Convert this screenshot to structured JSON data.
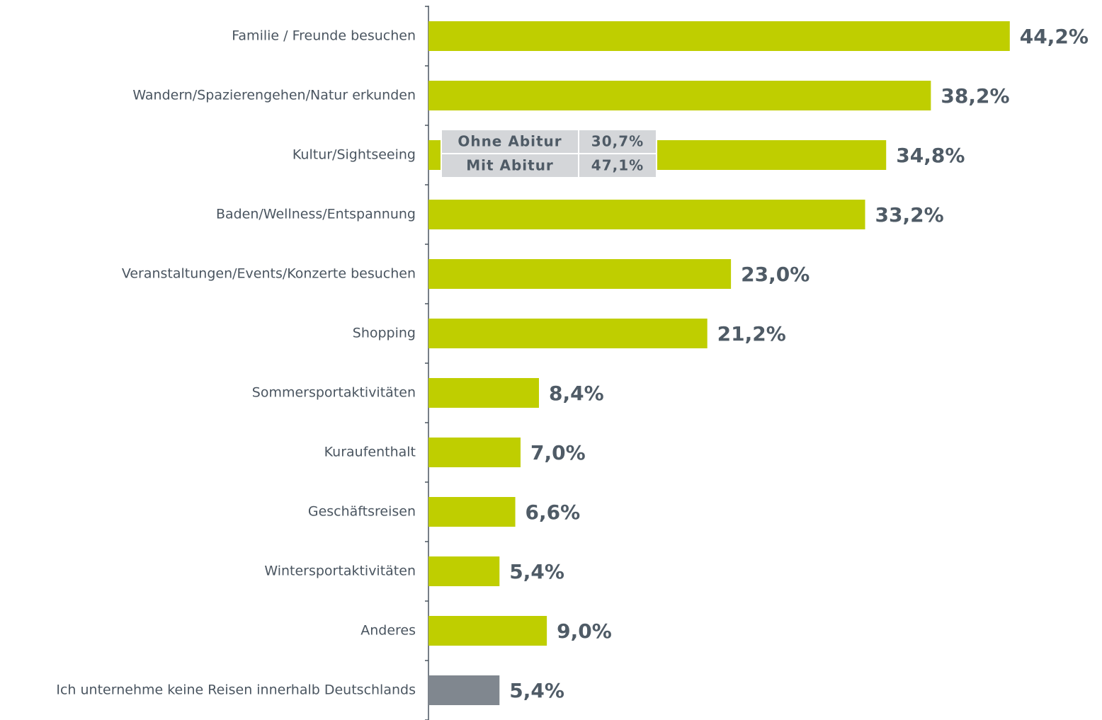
{
  "chart_data": {
    "type": "bar",
    "orientation": "horizontal",
    "categories": [
      "Familie / Freunde besuchen",
      "Wandern/Spazierengehen/Natur erkunden",
      "Kultur/Sightseeing",
      "Baden/Wellness/Entspannung",
      "Veranstaltungen/Events/Konzerte besuchen",
      "Shopping",
      "Sommersportaktivitäten",
      "Kuraufenthalt",
      "Geschäftsreisen",
      "Wintersportaktivitäten",
      "Anderes",
      "Ich unternehme keine Reisen innerhalb Deutschlands"
    ],
    "values": [
      44.2,
      38.2,
      34.8,
      33.2,
      23.0,
      21.2,
      8.4,
      7.0,
      6.6,
      5.4,
      9.0,
      5.4
    ],
    "value_labels": [
      "44,2%",
      "38,2%",
      "34,8%",
      "33,2%",
      "23,0%",
      "21,2%",
      "8,4%",
      "7,0%",
      "6,6%",
      "5,4%",
      "9,0%",
      "5,4%"
    ],
    "colors": [
      "#bfce00",
      "#bfce00",
      "#bfce00",
      "#bfce00",
      "#bfce00",
      "#bfce00",
      "#bfce00",
      "#bfce00",
      "#bfce00",
      "#bfce00",
      "#bfce00",
      "#80878f"
    ],
    "xlim": [
      0,
      50
    ],
    "inset_table": {
      "category": 2,
      "rows": [
        [
          "Ohne Abitur",
          "30,7%"
        ],
        [
          "Mit Abitur",
          "47,1%"
        ]
      ]
    }
  }
}
